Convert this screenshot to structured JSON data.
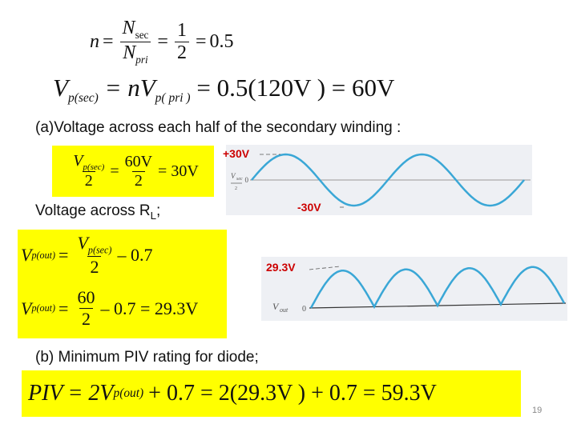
{
  "eq1": {
    "n": "n",
    "N": "N",
    "sec": "sec",
    "pri": "pri",
    "num": "1",
    "den": "2",
    "result": "0.5"
  },
  "eq2": {
    "lhs_V": "V",
    "lhs_sub": "p(sec)",
    "rhs": "= nV",
    "rhs_sub": "p( pri )",
    "result": "= 0.5(120V ) = 60V"
  },
  "heading_a": "(a)Voltage across each half of the secondary winding :",
  "eq3": {
    "V": "V",
    "sub": "p(sec)",
    "den1": "2",
    "num2": "60V",
    "den2": "2",
    "result": "= 30V"
  },
  "label_rl": "Voltage across R",
  "label_rl_sub": "L",
  "label_rl_end": ";",
  "plot1": {
    "top_label": "+30V",
    "bottom_label": "-30V",
    "axis_zero": "0",
    "trace_label_V": "V",
    "trace_label_sub1": "sec",
    "trace_label_sub2": "2",
    "wave_color": "#3aa7d6"
  },
  "eq4": {
    "V": "V",
    "sub_out": "p(out)",
    "sub_sec": "p(sec)",
    "den": "2",
    "tail": "– 0.7",
    "num2": "60",
    "tail2": "– 0.7 = 29.3V"
  },
  "plot2": {
    "top_label": "29.3V",
    "axis_label_V": "V",
    "axis_label_sub": "out",
    "axis_zero": "0",
    "wave_color": "#3aa7d6"
  },
  "heading_b": "(b) Minimum PIV rating for diode;",
  "eq5": {
    "PIV": "PIV",
    "eq": "= 2V",
    "sub": "p(out)",
    "rest": "+ 0.7 = 2(29.3V ) + 0.7 = 59.3V"
  },
  "page_number": "19",
  "colors": {
    "highlight": "#ffff00",
    "label_red": "#cc0000",
    "wave": "#3aa7d6"
  }
}
